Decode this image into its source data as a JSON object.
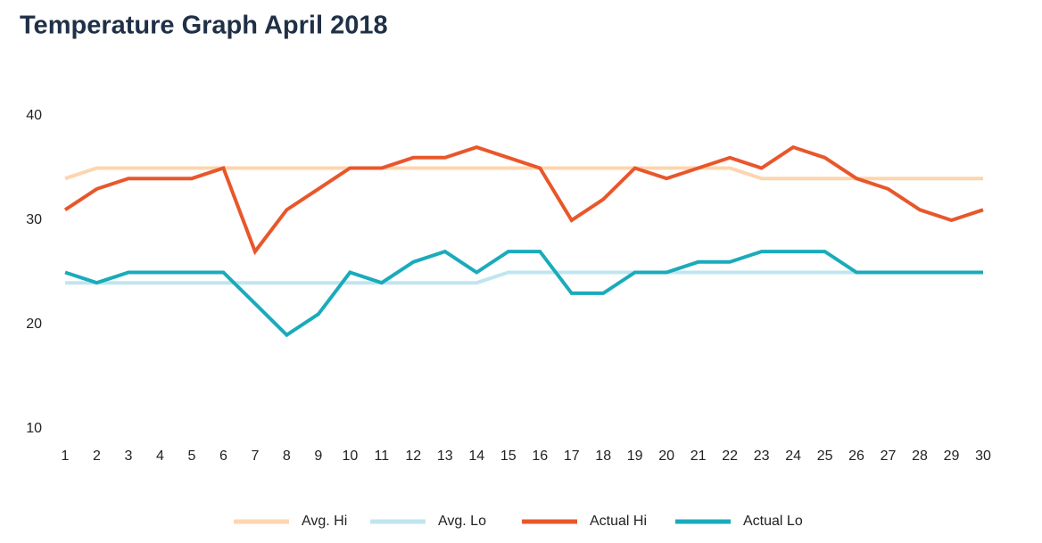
{
  "chart_data": {
    "type": "line",
    "title": "Temperature Graph April 2018",
    "x": [
      1,
      2,
      3,
      4,
      5,
      6,
      7,
      8,
      9,
      10,
      11,
      12,
      13,
      14,
      15,
      16,
      17,
      18,
      19,
      20,
      21,
      22,
      23,
      24,
      25,
      26,
      27,
      28,
      29,
      30
    ],
    "xlim": [
      1,
      30
    ],
    "xticks": [
      1,
      2,
      3,
      4,
      5,
      6,
      7,
      8,
      9,
      10,
      11,
      12,
      13,
      14,
      15,
      16,
      17,
      18,
      19,
      20,
      21,
      22,
      23,
      24,
      25,
      26,
      27,
      28,
      29,
      30
    ],
    "ylim": [
      10,
      40
    ],
    "yticks": [
      10,
      20,
      30,
      40
    ],
    "grid": false,
    "legend": "bottom",
    "series": [
      {
        "name": "Avg. Hi",
        "color": "#fdd5ae",
        "values": [
          34,
          35,
          35,
          35,
          35,
          35,
          35,
          35,
          35,
          35,
          35,
          35,
          35,
          35,
          35,
          35,
          35,
          35,
          35,
          35,
          35,
          35,
          34,
          34,
          34,
          34,
          34,
          34,
          34,
          34
        ]
      },
      {
        "name": "Avg. Lo",
        "color": "#bfe5f0",
        "values": [
          24,
          24,
          24,
          24,
          24,
          24,
          24,
          24,
          24,
          24,
          24,
          24,
          24,
          24,
          25,
          25,
          25,
          25,
          25,
          25,
          25,
          25,
          25,
          25,
          25,
          25,
          25,
          25,
          25,
          25
        ]
      },
      {
        "name": "Actual Hi",
        "color": "#e8572b",
        "values": [
          31,
          33,
          34,
          34,
          34,
          35,
          27,
          31,
          33,
          35,
          35,
          36,
          36,
          37,
          36,
          35,
          30,
          32,
          35,
          34,
          35,
          36,
          35,
          37,
          36,
          34,
          33,
          31,
          30,
          31
        ]
      },
      {
        "name": "Actual Lo",
        "color": "#1aabbb",
        "values": [
          25,
          24,
          25,
          25,
          25,
          25,
          22,
          19,
          21,
          25,
          24,
          26,
          27,
          25,
          27,
          27,
          23,
          23,
          25,
          25,
          26,
          26,
          27,
          27,
          27,
          25,
          25,
          25,
          25,
          25
        ]
      }
    ]
  }
}
